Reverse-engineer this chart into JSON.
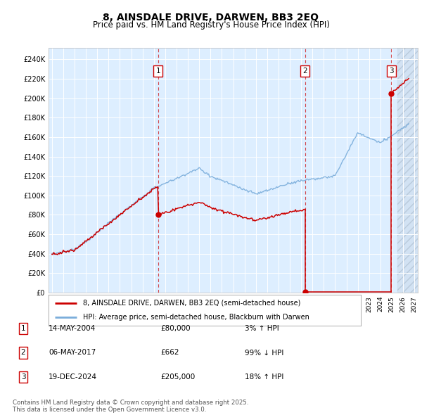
{
  "title": "8, AINSDALE DRIVE, DARWEN, BB3 2EQ",
  "subtitle": "Price paid vs. HM Land Registry's House Price Index (HPI)",
  "ylim": [
    0,
    252000
  ],
  "xlim_start": 1994.7,
  "xlim_end": 2027.3,
  "transactions": [
    {
      "date_num": 2004.37,
      "price": 80000,
      "label": "1"
    },
    {
      "date_num": 2017.35,
      "price": 662,
      "label": "2"
    },
    {
      "date_num": 2024.97,
      "price": 205000,
      "label": "3"
    }
  ],
  "legend_entries": [
    {
      "color": "#cc0000",
      "label": "8, AINSDALE DRIVE, DARWEN, BB3 2EQ (semi-detached house)"
    },
    {
      "color": "#7aaddb",
      "label": "HPI: Average price, semi-detached house, Blackburn with Darwen"
    }
  ],
  "table_rows": [
    {
      "num": "1",
      "date": "14-MAY-2004",
      "price": "£80,000",
      "change": "3% ↑ HPI"
    },
    {
      "num": "2",
      "date": "06-MAY-2017",
      "price": "£662",
      "change": "99% ↓ HPI"
    },
    {
      "num": "3",
      "date": "19-DEC-2024",
      "price": "£205,000",
      "change": "18% ↑ HPI"
    }
  ],
  "footnote": "Contains HM Land Registry data © Crown copyright and database right 2025.\nThis data is licensed under the Open Government Licence v3.0.",
  "bg_color": "#ddeeff",
  "grid_color": "#ffffff",
  "dashed_color": "#cc0000"
}
